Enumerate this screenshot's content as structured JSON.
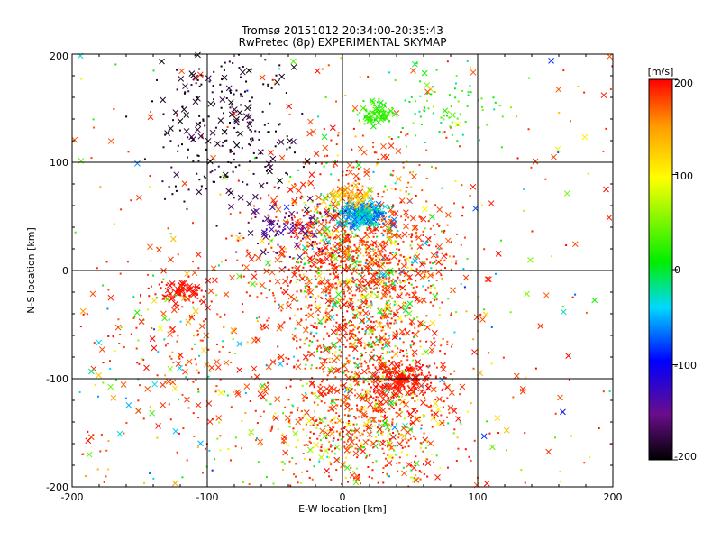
{
  "chart_data": {
    "type": "scatter",
    "title": "Tromsø 20151012 20:34:00-20:35:43",
    "subtitle": "RwPretec (8p) EXPERIMENTAL SKYMAP",
    "xlabel": "E-W location [km]",
    "ylabel": "N-S location [km]",
    "xlim": [
      -200,
      200
    ],
    "ylim": [
      -200,
      200
    ],
    "x_ticks": [
      "-200",
      "-100",
      "0",
      "100",
      "200"
    ],
    "y_ticks": [
      "-200",
      "-100",
      "0",
      "100",
      "200"
    ],
    "grid": true,
    "colorbar": {
      "label": "[m/s]",
      "range": [
        -200,
        200
      ],
      "ticks": [
        "200",
        "100",
        "0",
        "-100",
        "-200"
      ],
      "colormap": "rainbow (black → purple → blue → cyan → green → yellow → orange → red)",
      "colors": [
        "#000000",
        "#6a0d8a",
        "#0000ff",
        "#00d8ff",
        "#00ee00",
        "#ffff00",
        "#ff9900",
        "#ff0000"
      ]
    },
    "marker_styles": [
      "dot",
      "x"
    ],
    "clusters": [
      {
        "description": "dense central region, mostly positive (red) velocities",
        "x_range": [
          -20,
          60
        ],
        "y_range": [
          -200,
          60
        ],
        "dominant_velocity": 190
      },
      {
        "description": "cyan/blue patch near origin",
        "x_range": [
          -5,
          40
        ],
        "y_range": [
          40,
          65
        ],
        "dominant_velocity": -60
      },
      {
        "description": "green patch",
        "x_range": [
          15,
          35
        ],
        "y_range": [
          135,
          155
        ],
        "dominant_velocity": 20
      },
      {
        "description": "black/negative patch upper-left",
        "x_range": [
          -140,
          -40
        ],
        "y_range": [
          80,
          200
        ],
        "dominant_velocity": -200
      },
      {
        "description": "red patch left",
        "x_range": [
          -130,
          -100
        ],
        "y_range": [
          -30,
          -15
        ],
        "dominant_velocity": 200
      },
      {
        "description": "red patch lower-right",
        "x_range": [
          25,
          65
        ],
        "y_range": [
          -115,
          -90
        ],
        "dominant_velocity": 200
      }
    ]
  }
}
